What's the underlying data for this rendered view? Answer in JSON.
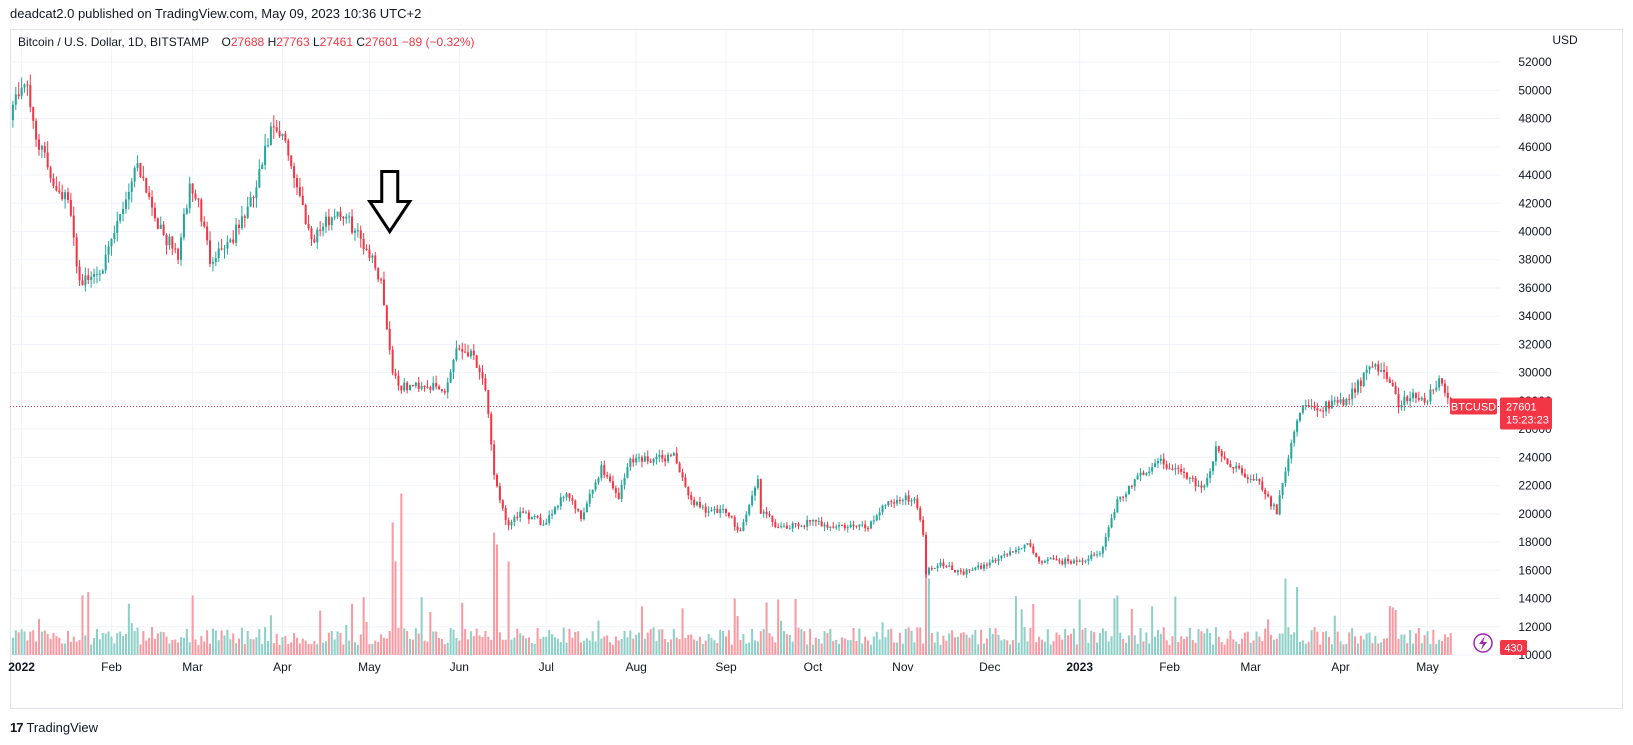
{
  "publisher_line": "deadcat2.0 published on TradingView.com, May 09, 2023 10:36 UTC+2",
  "footer": {
    "logo_glyph": "17",
    "brand": "TradingView"
  },
  "chart_data": {
    "type": "candlestick",
    "symbol_title": "Bitcoin / U.S. Dollar, 1D, BITSTAMP",
    "ohlc": {
      "o_label": "O",
      "o_value": "27688",
      "h_label": "H",
      "h_value": "27763",
      "l_label": "L",
      "l_value": "27461",
      "c_label": "C",
      "c_value": "27601",
      "change": "−89 (−0.32%)"
    },
    "currency_label": "USD",
    "y_ticks": [
      52000,
      50000,
      48000,
      46000,
      44000,
      42000,
      40000,
      38000,
      36000,
      34000,
      32000,
      30000,
      28000,
      26000,
      24000,
      22000,
      20000,
      18000,
      16000,
      14000,
      12000,
      10000
    ],
    "y_range": [
      10000,
      53000
    ],
    "x_ticks": [
      {
        "label": "2022",
        "date": "2022-01-01",
        "bold": true
      },
      {
        "label": "Feb",
        "date": "2022-02-01"
      },
      {
        "label": "Mar",
        "date": "2022-03-01"
      },
      {
        "label": "Apr",
        "date": "2022-04-01"
      },
      {
        "label": "May",
        "date": "2022-05-01"
      },
      {
        "label": "Jun",
        "date": "2022-06-01"
      },
      {
        "label": "Jul",
        "date": "2022-07-01"
      },
      {
        "label": "Aug",
        "date": "2022-08-01"
      },
      {
        "label": "Sep",
        "date": "2022-09-01"
      },
      {
        "label": "Oct",
        "date": "2022-10-01"
      },
      {
        "label": "Nov",
        "date": "2022-11-01"
      },
      {
        "label": "Dec",
        "date": "2022-12-01"
      },
      {
        "label": "2023",
        "date": "2023-01-01",
        "bold": true
      },
      {
        "label": "Feb",
        "date": "2023-02-01"
      },
      {
        "label": "Mar",
        "date": "2023-03-01"
      },
      {
        "label": "Apr",
        "date": "2023-04-01"
      },
      {
        "label": "May",
        "date": "2023-05-01"
      }
    ],
    "x_range": [
      "2021-12-28",
      "2023-05-26"
    ],
    "close_path": [
      {
        "date": "2021-12-28",
        "close": 48500
      },
      {
        "date": "2022-01-02",
        "close": 50800
      },
      {
        "date": "2022-01-06",
        "close": 46800
      },
      {
        "date": "2022-01-12",
        "close": 43500
      },
      {
        "date": "2022-01-17",
        "close": 42200
      },
      {
        "date": "2022-01-21",
        "close": 36500
      },
      {
        "date": "2022-01-24",
        "close": 36600
      },
      {
        "date": "2022-01-30",
        "close": 37900
      },
      {
        "date": "2022-02-06",
        "close": 42400
      },
      {
        "date": "2022-02-10",
        "close": 45000
      },
      {
        "date": "2022-02-14",
        "close": 42500
      },
      {
        "date": "2022-02-18",
        "close": 40000
      },
      {
        "date": "2022-02-24",
        "close": 38300
      },
      {
        "date": "2022-02-28",
        "close": 43200
      },
      {
        "date": "2022-03-03",
        "close": 42000
      },
      {
        "date": "2022-03-07",
        "close": 38100
      },
      {
        "date": "2022-03-15",
        "close": 39600
      },
      {
        "date": "2022-03-22",
        "close": 42400
      },
      {
        "date": "2022-03-28",
        "close": 47100
      },
      {
        "date": "2022-04-02",
        "close": 46400
      },
      {
        "date": "2022-04-06",
        "close": 43200
      },
      {
        "date": "2022-04-11",
        "close": 39500
      },
      {
        "date": "2022-04-20",
        "close": 41500
      },
      {
        "date": "2022-04-25",
        "close": 40400
      },
      {
        "date": "2022-05-01",
        "close": 38500
      },
      {
        "date": "2022-05-05",
        "close": 36500
      },
      {
        "date": "2022-05-09",
        "close": 30100
      },
      {
        "date": "2022-05-12",
        "close": 28900
      },
      {
        "date": "2022-05-20",
        "close": 29200
      },
      {
        "date": "2022-05-27",
        "close": 28600
      },
      {
        "date": "2022-05-31",
        "close": 31800
      },
      {
        "date": "2022-06-06",
        "close": 31300
      },
      {
        "date": "2022-06-10",
        "close": 29000
      },
      {
        "date": "2022-06-13",
        "close": 22500
      },
      {
        "date": "2022-06-18",
        "close": 19000
      },
      {
        "date": "2022-06-22",
        "close": 20100
      },
      {
        "date": "2022-06-30",
        "close": 19300
      },
      {
        "date": "2022-07-08",
        "close": 21600
      },
      {
        "date": "2022-07-13",
        "close": 19600
      },
      {
        "date": "2022-07-20",
        "close": 23300
      },
      {
        "date": "2022-07-26",
        "close": 21200
      },
      {
        "date": "2022-07-30",
        "close": 23900
      },
      {
        "date": "2022-08-10",
        "close": 23900
      },
      {
        "date": "2022-08-14",
        "close": 24300
      },
      {
        "date": "2022-08-19",
        "close": 21100
      },
      {
        "date": "2022-08-26",
        "close": 20200
      },
      {
        "date": "2022-09-01",
        "close": 20100
      },
      {
        "date": "2022-09-06",
        "close": 18800
      },
      {
        "date": "2022-09-12",
        "close": 22400
      },
      {
        "date": "2022-09-13",
        "close": 20200
      },
      {
        "date": "2022-09-20",
        "close": 18900
      },
      {
        "date": "2022-09-30",
        "close": 19400
      },
      {
        "date": "2022-10-10",
        "close": 19100
      },
      {
        "date": "2022-10-20",
        "close": 19100
      },
      {
        "date": "2022-10-26",
        "close": 20800
      },
      {
        "date": "2022-11-05",
        "close": 21200
      },
      {
        "date": "2022-11-08",
        "close": 18500
      },
      {
        "date": "2022-11-09",
        "close": 15900
      },
      {
        "date": "2022-11-14",
        "close": 16600
      },
      {
        "date": "2022-11-21",
        "close": 15800
      },
      {
        "date": "2022-11-28",
        "close": 16200
      },
      {
        "date": "2022-12-05",
        "close": 17000
      },
      {
        "date": "2022-12-14",
        "close": 17800
      },
      {
        "date": "2022-12-18",
        "close": 16700
      },
      {
        "date": "2022-12-30",
        "close": 16600
      },
      {
        "date": "2023-01-08",
        "close": 17100
      },
      {
        "date": "2023-01-14",
        "close": 20900
      },
      {
        "date": "2023-01-22",
        "close": 22700
      },
      {
        "date": "2023-01-29",
        "close": 23700
      },
      {
        "date": "2023-02-05",
        "close": 22900
      },
      {
        "date": "2023-02-13",
        "close": 21800
      },
      {
        "date": "2023-02-17",
        "close": 24500
      },
      {
        "date": "2023-02-24",
        "close": 23200
      },
      {
        "date": "2023-03-03",
        "close": 22400
      },
      {
        "date": "2023-03-10",
        "close": 20100
      },
      {
        "date": "2023-03-14",
        "close": 24200
      },
      {
        "date": "2023-03-18",
        "close": 27400
      },
      {
        "date": "2023-03-25",
        "close": 27500
      },
      {
        "date": "2023-04-03",
        "close": 28000
      },
      {
        "date": "2023-04-11",
        "close": 30200
      },
      {
        "date": "2023-04-16",
        "close": 30300
      },
      {
        "date": "2023-04-21",
        "close": 27800
      },
      {
        "date": "2023-04-26",
        "close": 28400
      },
      {
        "date": "2023-05-01",
        "close": 28100
      },
      {
        "date": "2023-05-05",
        "close": 29500
      },
      {
        "date": "2023-05-09",
        "close": 27601
      }
    ],
    "current_price": {
      "symbol": "BTCUSD",
      "price": "27601",
      "value": 27601,
      "countdown": "15:23:23"
    },
    "volume_badge": "430",
    "annotation": {
      "type": "arrow-down",
      "date": "2022-05-08",
      "price": 40000
    }
  },
  "colors": {
    "up": "#26a69a",
    "down": "#f23645",
    "up_volume": "#8ecfc8",
    "down_volume": "#f79aa2",
    "grid": "#f0f3fa",
    "axis_text": "#131722",
    "price_line": "#f23645",
    "lightning": "#9c27b0"
  },
  "icons": {
    "lightning": "lightning-icon",
    "logo": "tradingview-logo"
  }
}
